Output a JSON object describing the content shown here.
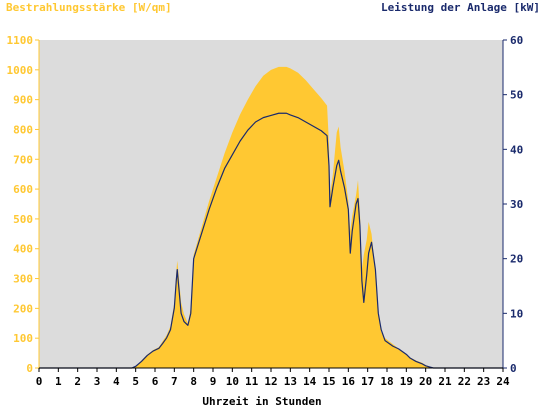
{
  "chart_data": {
    "type": "area",
    "title_left": "Bestrahlungsstärke [W/qm]",
    "title_right": "Leistung der Anlage [kW]",
    "xlabel": "Uhrzeit in Stunden",
    "xlim": [
      0,
      24
    ],
    "x_ticks": [
      "0",
      "1",
      "2",
      "3",
      "4",
      "5",
      "6",
      "7",
      "8",
      "9",
      "10",
      "11",
      "12",
      "13",
      "14",
      "15",
      "16",
      "17",
      "18",
      "19",
      "20",
      "21",
      "22",
      "23",
      "24"
    ],
    "y_left": {
      "lim": [
        0,
        1100
      ],
      "ticks": [
        "0",
        "100",
        "200",
        "300",
        "400",
        "500",
        "600",
        "700",
        "800",
        "900",
        "1000",
        "1100"
      ],
      "color": "#ffc832"
    },
    "y_right": {
      "lim": [
        0,
        60
      ],
      "ticks": [
        "0",
        "10",
        "20",
        "30",
        "40",
        "50",
        "60"
      ],
      "color": "#1a2a6c"
    },
    "plot_bg": "#dcdcdc",
    "series": [
      {
        "axis": "left",
        "style": "area",
        "color": "#ffc832",
        "points": [
          [
            0,
            0
          ],
          [
            4.8,
            0
          ],
          [
            5.0,
            5
          ],
          [
            5.3,
            25
          ],
          [
            5.6,
            45
          ],
          [
            5.9,
            60
          ],
          [
            6.2,
            70
          ],
          [
            6.4,
            90
          ],
          [
            6.6,
            110
          ],
          [
            6.8,
            140
          ],
          [
            7.0,
            220
          ],
          [
            7.1,
            320
          ],
          [
            7.15,
            360
          ],
          [
            7.2,
            330
          ],
          [
            7.35,
            220
          ],
          [
            7.5,
            180
          ],
          [
            7.7,
            150
          ],
          [
            7.85,
            200
          ],
          [
            8.0,
            380
          ],
          [
            8.4,
            470
          ],
          [
            8.8,
            560
          ],
          [
            9.2,
            640
          ],
          [
            9.6,
            720
          ],
          [
            10.0,
            790
          ],
          [
            10.4,
            850
          ],
          [
            10.8,
            900
          ],
          [
            11.2,
            945
          ],
          [
            11.6,
            980
          ],
          [
            12.0,
            1000
          ],
          [
            12.4,
            1010
          ],
          [
            12.8,
            1010
          ],
          [
            13.0,
            1005
          ],
          [
            13.4,
            990
          ],
          [
            13.8,
            965
          ],
          [
            14.2,
            935
          ],
          [
            14.6,
            905
          ],
          [
            14.9,
            880
          ],
          [
            15.0,
            750
          ],
          [
            15.05,
            580
          ],
          [
            15.2,
            650
          ],
          [
            15.4,
            790
          ],
          [
            15.5,
            810
          ],
          [
            15.6,
            740
          ],
          [
            15.8,
            660
          ],
          [
            16.0,
            560
          ],
          [
            16.1,
            460
          ],
          [
            16.2,
            510
          ],
          [
            16.4,
            580
          ],
          [
            16.5,
            630
          ],
          [
            16.6,
            520
          ],
          [
            16.7,
            330
          ],
          [
            16.8,
            380
          ],
          [
            16.95,
            430
          ],
          [
            17.05,
            490
          ],
          [
            17.2,
            450
          ],
          [
            17.4,
            330
          ],
          [
            17.55,
            180
          ],
          [
            17.7,
            120
          ],
          [
            17.9,
            100
          ],
          [
            18.1,
            90
          ],
          [
            18.3,
            80
          ],
          [
            18.6,
            65
          ],
          [
            18.8,
            55
          ],
          [
            19.0,
            45
          ],
          [
            19.2,
            35
          ],
          [
            19.5,
            25
          ],
          [
            19.8,
            18
          ],
          [
            20.0,
            10
          ],
          [
            20.2,
            5
          ],
          [
            20.4,
            0
          ],
          [
            24,
            0
          ]
        ]
      },
      {
        "axis": "right",
        "style": "line",
        "color": "#1a2a6c",
        "points": [
          [
            0,
            0
          ],
          [
            4.8,
            0
          ],
          [
            5.0,
            0.3
          ],
          [
            5.3,
            1.2
          ],
          [
            5.6,
            2.3
          ],
          [
            5.9,
            3.1
          ],
          [
            6.2,
            3.6
          ],
          [
            6.4,
            4.5
          ],
          [
            6.6,
            5.5
          ],
          [
            6.8,
            7.0
          ],
          [
            7.0,
            11
          ],
          [
            7.1,
            16
          ],
          [
            7.15,
            18
          ],
          [
            7.2,
            16
          ],
          [
            7.35,
            10
          ],
          [
            7.5,
            8.5
          ],
          [
            7.7,
            7.8
          ],
          [
            7.85,
            10
          ],
          [
            8.0,
            20
          ],
          [
            8.4,
            24.5
          ],
          [
            8.8,
            29
          ],
          [
            9.2,
            33
          ],
          [
            9.6,
            36.5
          ],
          [
            10.0,
            39
          ],
          [
            10.4,
            41.5
          ],
          [
            10.8,
            43.5
          ],
          [
            11.2,
            45
          ],
          [
            11.6,
            45.8
          ],
          [
            12.0,
            46.2
          ],
          [
            12.4,
            46.6
          ],
          [
            12.8,
            46.6
          ],
          [
            13.0,
            46.3
          ],
          [
            13.4,
            45.8
          ],
          [
            13.8,
            45.0
          ],
          [
            14.2,
            44.2
          ],
          [
            14.6,
            43.4
          ],
          [
            14.9,
            42.5
          ],
          [
            15.0,
            37
          ],
          [
            15.05,
            29.5
          ],
          [
            15.2,
            33
          ],
          [
            15.4,
            37
          ],
          [
            15.5,
            38
          ],
          [
            15.6,
            36
          ],
          [
            15.8,
            33
          ],
          [
            16.0,
            29
          ],
          [
            16.1,
            21
          ],
          [
            16.2,
            25
          ],
          [
            16.4,
            30
          ],
          [
            16.5,
            31
          ],
          [
            16.6,
            26
          ],
          [
            16.7,
            16
          ],
          [
            16.8,
            12
          ],
          [
            16.95,
            17
          ],
          [
            17.05,
            21
          ],
          [
            17.2,
            23
          ],
          [
            17.4,
            18
          ],
          [
            17.55,
            10
          ],
          [
            17.7,
            7
          ],
          [
            17.9,
            5
          ],
          [
            18.1,
            4.5
          ],
          [
            18.3,
            4
          ],
          [
            18.6,
            3.5
          ],
          [
            18.8,
            3
          ],
          [
            19.0,
            2.5
          ],
          [
            19.2,
            1.8
          ],
          [
            19.5,
            1.2
          ],
          [
            19.8,
            0.8
          ],
          [
            20.0,
            0.4
          ],
          [
            20.2,
            0.2
          ],
          [
            20.4,
            0
          ],
          [
            24,
            0
          ]
        ]
      }
    ]
  }
}
